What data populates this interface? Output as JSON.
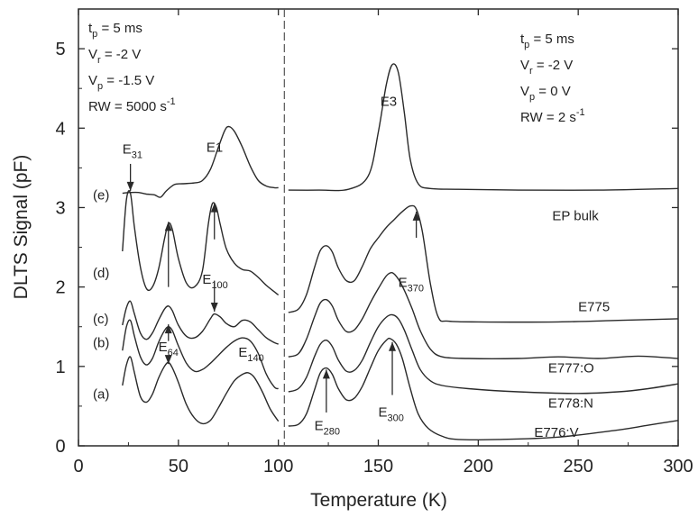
{
  "chart_data": {
    "type": "line",
    "xlabel": "Temperature (K)",
    "ylabel": "DLTS Signal (pF)",
    "xlim": [
      0,
      300
    ],
    "ylim": [
      0,
      5.5
    ],
    "xticks": [
      0,
      50,
      100,
      150,
      200,
      250,
      300
    ],
    "yticks": [
      0,
      1,
      2,
      3,
      4,
      5
    ],
    "grid": false,
    "divider_x": 103,
    "left_params": [
      {
        "base": "t",
        "sub": "p",
        "sup": "",
        "rest": " = 5 ms"
      },
      {
        "base": "V",
        "sub": "r",
        "sup": "",
        "rest": " = -2 V"
      },
      {
        "base": "V",
        "sub": "p",
        "sup": "",
        "rest": " = -1.5 V"
      },
      {
        "base": "RW = 5000 s",
        "sub": "",
        "sup": "-1",
        "rest": ""
      }
    ],
    "right_params": [
      {
        "base": "t",
        "sub": "p",
        "sup": "",
        "rest": " = 5 ms"
      },
      {
        "base": "V",
        "sub": "r",
        "sup": "",
        "rest": " = -2 V"
      },
      {
        "base": "V",
        "sub": "p",
        "sup": "",
        "rest": " = 0 V"
      },
      {
        "base": "RW = 2 s",
        "sub": "",
        "sup": "-1",
        "rest": ""
      }
    ],
    "series": [
      {
        "name": "(a)",
        "left": [
          [
            22,
            0.76
          ],
          [
            24,
            1.02
          ],
          [
            26,
            1.12
          ],
          [
            28,
            0.92
          ],
          [
            31,
            0.62
          ],
          [
            34,
            0.55
          ],
          [
            37,
            0.65
          ],
          [
            40,
            0.85
          ],
          [
            43,
            1.0
          ],
          [
            45,
            1.05
          ],
          [
            47,
            0.98
          ],
          [
            50,
            0.8
          ],
          [
            54,
            0.52
          ],
          [
            58,
            0.35
          ],
          [
            62,
            0.28
          ],
          [
            66,
            0.32
          ],
          [
            70,
            0.48
          ],
          [
            74,
            0.66
          ],
          [
            78,
            0.82
          ],
          [
            82,
            0.9
          ],
          [
            85,
            0.92
          ],
          [
            88,
            0.86
          ],
          [
            92,
            0.68
          ],
          [
            96,
            0.46
          ],
          [
            100,
            0.31
          ]
        ],
        "right": [
          [
            105,
            0.25
          ],
          [
            110,
            0.27
          ],
          [
            114,
            0.4
          ],
          [
            118,
            0.7
          ],
          [
            121,
            0.92
          ],
          [
            124,
            0.98
          ],
          [
            127,
            0.9
          ],
          [
            130,
            0.72
          ],
          [
            134,
            0.58
          ],
          [
            138,
            0.6
          ],
          [
            142,
            0.75
          ],
          [
            146,
            0.98
          ],
          [
            150,
            1.2
          ],
          [
            154,
            1.33
          ],
          [
            156,
            1.35
          ],
          [
            159,
            1.28
          ],
          [
            162,
            1.1
          ],
          [
            166,
            0.72
          ],
          [
            170,
            0.4
          ],
          [
            175,
            0.22
          ],
          [
            182,
            0.12
          ],
          [
            190,
            0.08
          ],
          [
            210,
            0.08
          ],
          [
            240,
            0.11
          ],
          [
            270,
            0.2
          ],
          [
            285,
            0.26
          ],
          [
            300,
            0.32
          ]
        ],
        "label": "(a)",
        "right_label": "E776:V"
      },
      {
        "name": "(b)",
        "left": [
          [
            22,
            1.2
          ],
          [
            24,
            1.5
          ],
          [
            26,
            1.58
          ],
          [
            28,
            1.38
          ],
          [
            31,
            1.12
          ],
          [
            34,
            1.02
          ],
          [
            37,
            1.1
          ],
          [
            40,
            1.3
          ],
          [
            43,
            1.45
          ],
          [
            45,
            1.5
          ],
          [
            47,
            1.45
          ],
          [
            50,
            1.26
          ],
          [
            54,
            1.04
          ],
          [
            58,
            0.94
          ],
          [
            62,
            0.96
          ],
          [
            66,
            1.04
          ],
          [
            70,
            1.14
          ],
          [
            74,
            1.24
          ],
          [
            78,
            1.32
          ],
          [
            82,
            1.36
          ],
          [
            86,
            1.32
          ],
          [
            90,
            1.16
          ],
          [
            94,
            0.9
          ],
          [
            98,
            0.74
          ],
          [
            100,
            0.72
          ]
        ],
        "right": [
          [
            105,
            0.68
          ],
          [
            110,
            0.72
          ],
          [
            114,
            0.86
          ],
          [
            118,
            1.12
          ],
          [
            121,
            1.28
          ],
          [
            124,
            1.33
          ],
          [
            127,
            1.25
          ],
          [
            130,
            1.08
          ],
          [
            134,
            0.94
          ],
          [
            138,
            0.95
          ],
          [
            142,
            1.08
          ],
          [
            146,
            1.3
          ],
          [
            150,
            1.5
          ],
          [
            154,
            1.62
          ],
          [
            157,
            1.65
          ],
          [
            160,
            1.6
          ],
          [
            163,
            1.46
          ],
          [
            167,
            1.2
          ],
          [
            171,
            0.96
          ],
          [
            176,
            0.82
          ],
          [
            182,
            0.76
          ],
          [
            195,
            0.72
          ],
          [
            220,
            0.68
          ],
          [
            250,
            0.66
          ],
          [
            270,
            0.68
          ],
          [
            285,
            0.72
          ],
          [
            300,
            0.78
          ]
        ],
        "label": "(b)",
        "right_label": "E778:N"
      },
      {
        "name": "(c)",
        "left": [
          [
            22,
            1.52
          ],
          [
            24,
            1.74
          ],
          [
            26,
            1.82
          ],
          [
            28,
            1.66
          ],
          [
            31,
            1.42
          ],
          [
            34,
            1.34
          ],
          [
            37,
            1.42
          ],
          [
            40,
            1.58
          ],
          [
            43,
            1.72
          ],
          [
            45,
            1.76
          ],
          [
            47,
            1.7
          ],
          [
            50,
            1.52
          ],
          [
            54,
            1.38
          ],
          [
            58,
            1.36
          ],
          [
            62,
            1.44
          ],
          [
            66,
            1.6
          ],
          [
            68,
            1.66
          ],
          [
            71,
            1.62
          ],
          [
            74,
            1.54
          ],
          [
            78,
            1.5
          ],
          [
            82,
            1.58
          ],
          [
            86,
            1.56
          ],
          [
            90,
            1.46
          ],
          [
            94,
            1.36
          ],
          [
            98,
            1.3
          ],
          [
            100,
            1.28
          ]
        ],
        "right": [
          [
            105,
            1.12
          ],
          [
            110,
            1.16
          ],
          [
            114,
            1.34
          ],
          [
            118,
            1.62
          ],
          [
            121,
            1.8
          ],
          [
            124,
            1.84
          ],
          [
            127,
            1.76
          ],
          [
            130,
            1.58
          ],
          [
            134,
            1.44
          ],
          [
            138,
            1.46
          ],
          [
            142,
            1.6
          ],
          [
            146,
            1.8
          ],
          [
            150,
            1.98
          ],
          [
            154,
            2.14
          ],
          [
            157,
            2.18
          ],
          [
            160,
            2.1
          ],
          [
            163,
            1.96
          ],
          [
            167,
            1.72
          ],
          [
            171,
            1.45
          ],
          [
            176,
            1.22
          ],
          [
            182,
            1.12
          ],
          [
            195,
            1.1
          ],
          [
            220,
            1.1
          ],
          [
            240,
            1.12
          ],
          [
            260,
            1.1
          ],
          [
            280,
            1.13
          ],
          [
            300,
            1.1
          ]
        ],
        "label": "(c)",
        "right_label": "E777:O"
      },
      {
        "name": "(d)",
        "left": [
          [
            22,
            2.45
          ],
          [
            24,
            3.1
          ],
          [
            26,
            3.18
          ],
          [
            28,
            2.75
          ],
          [
            31,
            2.25
          ],
          [
            34,
            1.98
          ],
          [
            37,
            2.0
          ],
          [
            40,
            2.22
          ],
          [
            43,
            2.6
          ],
          [
            45,
            2.8
          ],
          [
            47,
            2.72
          ],
          [
            50,
            2.36
          ],
          [
            54,
            2.05
          ],
          [
            58,
            2.0
          ],
          [
            62,
            2.2
          ],
          [
            65,
            2.8
          ],
          [
            67,
            3.05
          ],
          [
            69,
            3.0
          ],
          [
            71,
            2.78
          ],
          [
            74,
            2.48
          ],
          [
            78,
            2.3
          ],
          [
            82,
            2.22
          ],
          [
            86,
            2.2
          ],
          [
            90,
            2.12
          ],
          [
            94,
            2.02
          ],
          [
            98,
            1.94
          ],
          [
            100,
            1.9
          ]
        ],
        "right": [
          [
            105,
            1.68
          ],
          [
            110,
            1.72
          ],
          [
            114,
            1.9
          ],
          [
            118,
            2.24
          ],
          [
            121,
            2.46
          ],
          [
            124,
            2.52
          ],
          [
            127,
            2.44
          ],
          [
            130,
            2.24
          ],
          [
            134,
            2.08
          ],
          [
            138,
            2.08
          ],
          [
            142,
            2.26
          ],
          [
            146,
            2.48
          ],
          [
            150,
            2.62
          ],
          [
            154,
            2.75
          ],
          [
            158,
            2.85
          ],
          [
            162,
            2.95
          ],
          [
            166,
            3.02
          ],
          [
            169,
            2.98
          ],
          [
            172,
            2.7
          ],
          [
            176,
            2.05
          ],
          [
            180,
            1.62
          ],
          [
            185,
            1.57
          ],
          [
            200,
            1.56
          ],
          [
            240,
            1.56
          ],
          [
            270,
            1.58
          ],
          [
            300,
            1.6
          ]
        ],
        "label": "(d)",
        "right_label": "E775"
      },
      {
        "name": "(e)",
        "left": [
          [
            22,
            3.18
          ],
          [
            26,
            3.19
          ],
          [
            30,
            3.19
          ],
          [
            34,
            3.17
          ],
          [
            38,
            3.16
          ],
          [
            41,
            3.13
          ],
          [
            44,
            3.21
          ],
          [
            48,
            3.29
          ],
          [
            52,
            3.3
          ],
          [
            58,
            3.31
          ],
          [
            62,
            3.34
          ],
          [
            66,
            3.48
          ],
          [
            70,
            3.76
          ],
          [
            73,
            3.96
          ],
          [
            75,
            4.02
          ],
          [
            78,
            3.96
          ],
          [
            82,
            3.76
          ],
          [
            86,
            3.52
          ],
          [
            90,
            3.34
          ],
          [
            94,
            3.27
          ],
          [
            98,
            3.25
          ],
          [
            100,
            3.25
          ]
        ],
        "right": [
          [
            105,
            3.22
          ],
          [
            120,
            3.22
          ],
          [
            135,
            3.23
          ],
          [
            145,
            3.4
          ],
          [
            150,
            3.95
          ],
          [
            154,
            4.55
          ],
          [
            157,
            4.8
          ],
          [
            160,
            4.7
          ],
          [
            163,
            4.2
          ],
          [
            166,
            3.6
          ],
          [
            170,
            3.3
          ],
          [
            176,
            3.24
          ],
          [
            190,
            3.23
          ],
          [
            220,
            3.22
          ],
          [
            260,
            3.22
          ],
          [
            300,
            3.24
          ]
        ],
        "label": "(e)",
        "right_label": "EP bulk"
      }
    ],
    "annotations": {
      "e31": {
        "base": "E",
        "sub": "31"
      },
      "e1": {
        "base": "E1",
        "sub": ""
      },
      "e3": {
        "base": "E3",
        "sub": ""
      },
      "e100": {
        "base": "E",
        "sub": "100"
      },
      "e64": {
        "base": "E",
        "sub": "64"
      },
      "e140": {
        "base": "E",
        "sub": "140"
      },
      "e370": {
        "base": "E",
        "sub": "370"
      },
      "e280": {
        "base": "E",
        "sub": "280"
      },
      "e300": {
        "base": "E",
        "sub": "300"
      }
    }
  }
}
